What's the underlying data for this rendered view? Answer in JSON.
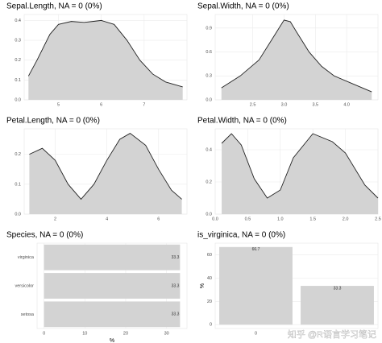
{
  "chart_data": [
    {
      "type": "area",
      "title": "Sepal.Length, NA = 0 (0%)",
      "x": [
        4.3,
        4.5,
        4.8,
        5.0,
        5.3,
        5.6,
        5.8,
        6.0,
        6.3,
        6.6,
        6.9,
        7.2,
        7.5,
        7.9
      ],
      "values": [
        0.12,
        0.2,
        0.33,
        0.38,
        0.395,
        0.39,
        0.395,
        0.4,
        0.38,
        0.3,
        0.2,
        0.13,
        0.09,
        0.065
      ],
      "xlim": [
        4.2,
        8.0
      ],
      "xticks": [
        5,
        6,
        7
      ],
      "ylim": [
        0,
        0.43
      ],
      "yticks": [
        {
          "value": 0,
          "label": "0.0"
        },
        0.1,
        0.2,
        0.3,
        0.4
      ],
      "color": "#d3d3d3",
      "grid": true
    },
    {
      "type": "area",
      "title": "Sepal.Width, NA = 0 (0%)",
      "x": [
        2.0,
        2.3,
        2.6,
        2.8,
        3.0,
        3.1,
        3.2,
        3.4,
        3.6,
        3.8,
        4.1,
        4.4
      ],
      "values": [
        0.15,
        0.3,
        0.5,
        0.75,
        1.0,
        0.98,
        0.85,
        0.6,
        0.42,
        0.3,
        0.2,
        0.1
      ],
      "xlim": [
        1.9,
        4.5
      ],
      "xticks": [
        2.5,
        {
          "value": 3,
          "label": "3.0"
        },
        3.5,
        {
          "value": 4,
          "label": "4.0"
        }
      ],
      "ylim": [
        0,
        1.07
      ],
      "yticks": [
        {
          "value": 0,
          "label": "0.0"
        },
        0.3,
        0.6,
        0.9
      ],
      "color": "#d3d3d3",
      "grid": true
    },
    {
      "type": "area",
      "title": "Petal.Length, NA = 0 (0%)",
      "x": [
        1.0,
        1.5,
        2.0,
        2.5,
        3.0,
        3.5,
        4.0,
        4.5,
        4.9,
        5.5,
        6.0,
        6.5,
        6.9
      ],
      "values": [
        0.2,
        0.22,
        0.18,
        0.1,
        0.05,
        0.1,
        0.18,
        0.25,
        0.27,
        0.23,
        0.15,
        0.08,
        0.05
      ],
      "xlim": [
        0.8,
        7.1
      ],
      "xticks": [
        2,
        4,
        6
      ],
      "ylim": [
        0,
        0.285
      ],
      "yticks": [
        {
          "value": 0,
          "label": "0.0"
        },
        0.1,
        0.2
      ],
      "color": "#d3d3d3",
      "grid": true
    },
    {
      "type": "area",
      "title": "Petal.Width, NA = 0 (0%)",
      "x": [
        0.1,
        0.25,
        0.4,
        0.6,
        0.8,
        1.0,
        1.2,
        1.5,
        1.8,
        2.0,
        2.3,
        2.5
      ],
      "values": [
        0.44,
        0.5,
        0.43,
        0.22,
        0.1,
        0.15,
        0.35,
        0.5,
        0.45,
        0.38,
        0.18,
        0.1
      ],
      "xlim": [
        0,
        2.5
      ],
      "xticks": [
        {
          "value": 0,
          "label": "0.0"
        },
        0.5,
        {
          "value": 1,
          "label": "1.0"
        },
        1.5,
        {
          "value": 2,
          "label": "2.0"
        },
        2.5
      ],
      "ylim": [
        0,
        0.53
      ],
      "yticks": [
        {
          "value": 0,
          "label": "0.0"
        },
        0.2,
        0.4
      ],
      "color": "#d3d3d3",
      "grid": true
    },
    {
      "type": "hbar",
      "title": "Species, NA = 0 (0%)",
      "categories": [
        "virginica",
        "versicolor",
        "setosa"
      ],
      "values": [
        33.3,
        33.3,
        33.3
      ],
      "xlim": [
        -1.7,
        35
      ],
      "xticks": [
        0,
        10,
        20,
        30
      ],
      "xlabel": "%",
      "color": "#d3d3d3",
      "grid": true
    },
    {
      "type": "bar",
      "title": "is_virginica, NA = 0 (0%)",
      "categories": [
        "0",
        null
      ],
      "values": [
        66.7,
        33.3
      ],
      "ylim": [
        -3.3,
        70
      ],
      "yticks": [
        0,
        20,
        40,
        60
      ],
      "ylabel": "%",
      "color": "#d3d3d3",
      "grid": true,
      "watermark": "知乎 @R语言学习笔记"
    }
  ]
}
